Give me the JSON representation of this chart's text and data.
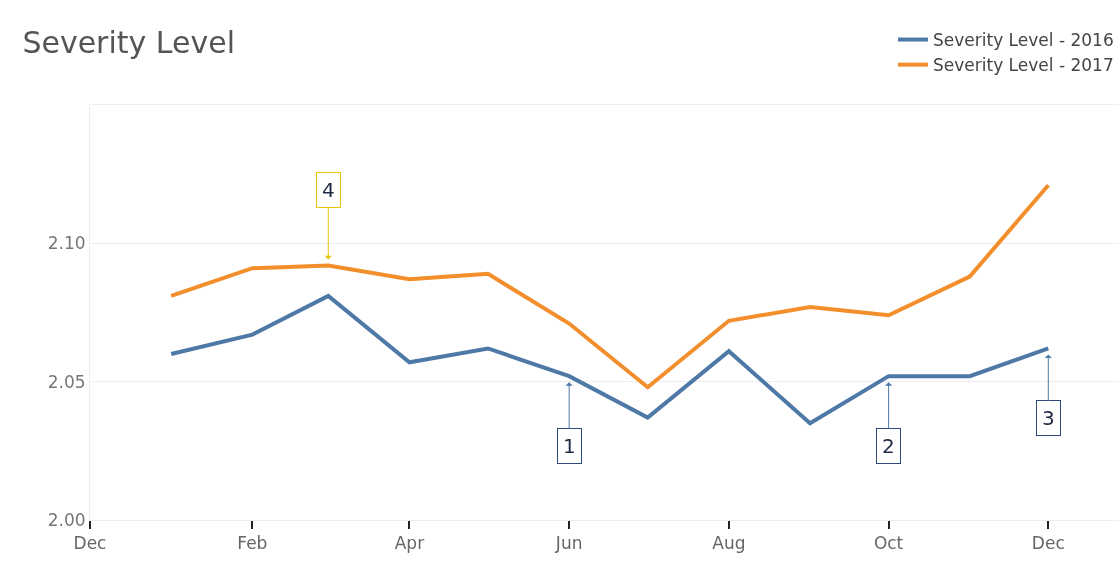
{
  "chart_data": {
    "type": "line",
    "title": "Severity Level",
    "x": [
      "2016-01",
      "2016-02",
      "2016-03",
      "2016-04",
      "2016-05",
      "2016-06",
      "2016-07",
      "2016-08",
      "2016-09",
      "2016-10",
      "2016-11",
      "2016-12"
    ],
    "series": [
      {
        "name": "Severity Level - 2016",
        "color": "#4e79a7",
        "values": [
          2.06,
          2.067,
          2.081,
          2.057,
          2.062,
          2.052,
          2.037,
          2.061,
          2.035,
          2.052,
          2.052,
          2.062
        ]
      },
      {
        "name": "Severity Level - 2017",
        "color": "#f28e2b",
        "values": [
          2.081,
          2.091,
          2.092,
          2.087,
          2.089,
          2.071,
          2.048,
          2.072,
          2.077,
          2.074,
          2.088,
          2.121
        ]
      }
    ],
    "xlim": [
      "2015-12",
      "2016-12-28"
    ],
    "xticks": [
      {
        "value": "2015-12",
        "label": "Dec"
      },
      {
        "value": "2016-02",
        "label": "Feb"
      },
      {
        "value": "2016-04",
        "label": "Apr"
      },
      {
        "value": "2016-06",
        "label": "Jun"
      },
      {
        "value": "2016-08",
        "label": "Aug"
      },
      {
        "value": "2016-10",
        "label": "Oct"
      },
      {
        "value": "2016-12",
        "label": "Dec"
      }
    ],
    "ylim": [
      2.0,
      2.15
    ],
    "yticks": [
      {
        "value": 2.0,
        "label": "2.00"
      },
      {
        "value": 2.05,
        "label": "2.05"
      },
      {
        "value": 2.1,
        "label": "2.10"
      }
    ],
    "annotations": [
      {
        "text": "1",
        "x": "2016-06",
        "y": 2.052
      },
      {
        "text": "2",
        "x": "2016-10",
        "y": 2.052
      },
      {
        "text": "3",
        "x": "2016-12",
        "y": 2.062
      },
      {
        "text": "4",
        "x": "2016-03",
        "y": 2.092
      }
    ],
    "grid": "y",
    "legend": "top right",
    "marker": "none",
    "line_style": "solid"
  }
}
